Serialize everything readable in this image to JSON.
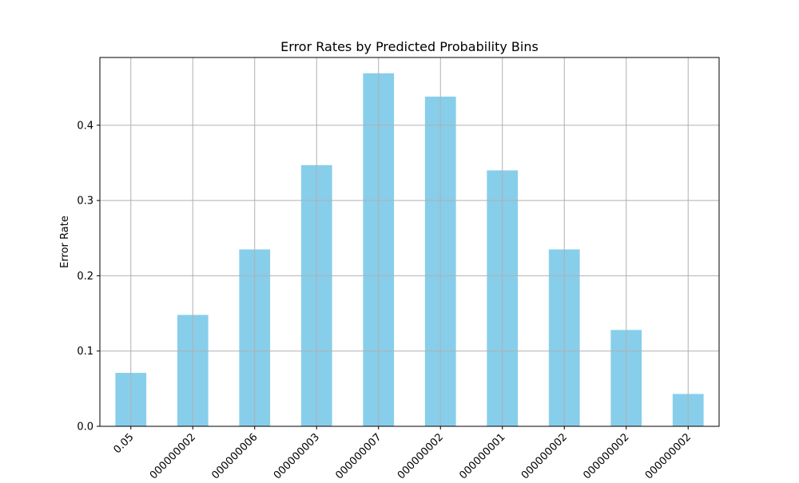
{
  "chart_data": {
    "type": "bar",
    "title": "Error Rates by Predicted Probability Bins",
    "xlabel": "",
    "ylabel": "Error Rate",
    "categories": [
      "0.05",
      "000000002",
      "000000006",
      "000000003",
      "000000007",
      "000000002",
      "000000001",
      "000000002",
      "000000002",
      "000000002"
    ],
    "values": [
      0.071,
      0.148,
      0.235,
      0.347,
      0.469,
      0.438,
      0.34,
      0.235,
      0.128,
      0.043
    ],
    "ylim": [
      0,
      0.49
    ],
    "yticks": [
      0.0,
      0.1,
      0.2,
      0.3,
      0.4
    ],
    "ytick_labels": [
      "0.0",
      "0.1",
      "0.2",
      "0.3",
      "0.4"
    ],
    "grid": true,
    "bar_color": "#87ceeb",
    "grid_color": "#b0b0b0"
  }
}
